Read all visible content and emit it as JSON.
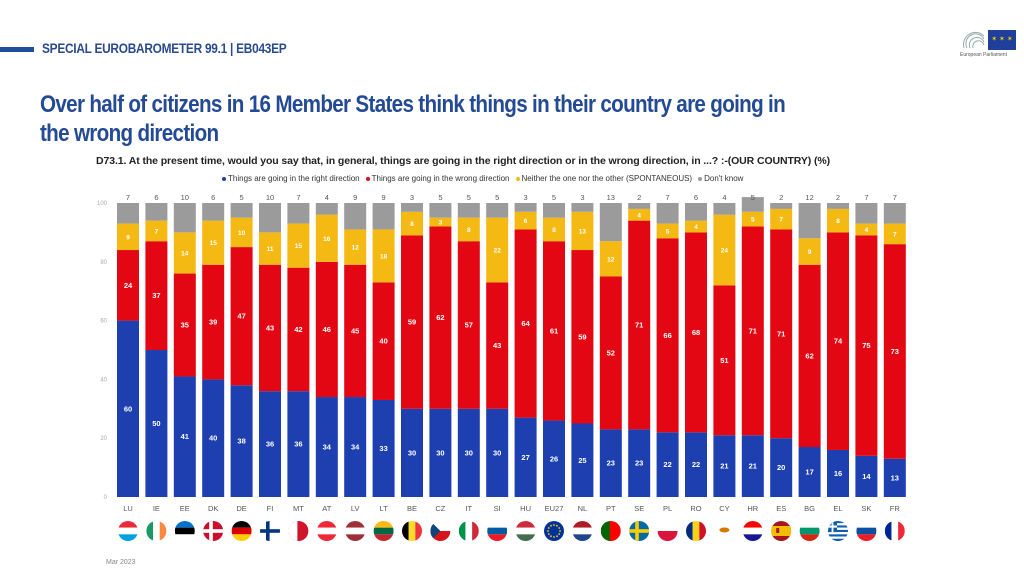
{
  "header": {
    "survey_label": "SPECIAL EUROBAROMETER 99.1 | EB043EP",
    "logo_text": "European Parliament",
    "title": "Over half of citizens in 16 Member States think things in their country are going in the wrong direction",
    "question": "D73.1. At the present time, would you say that, in general, things are going in the right direction or in the wrong direction, in ...? :-(OUR COUNTRY) (%)"
  },
  "footer": {
    "date": "Mar 2023"
  },
  "colors": {
    "right": "#1d3fb0",
    "wrong": "#e30613",
    "neither": "#f5b914",
    "dontknow": "#9b9b9b",
    "accent": "#244a95"
  },
  "chart_data": {
    "type": "bar",
    "stacked": true,
    "title": "D73.1. At the present time, would you say that, in general, things are going in the right direction or in the wrong direction, in ...? :-(OUR COUNTRY) (%)",
    "xlabel": "",
    "ylabel": "%",
    "ylim": [
      0,
      100
    ],
    "yticks": [
      0,
      20,
      40,
      60,
      80,
      100
    ],
    "legend_position": "top",
    "categories": [
      "LU",
      "IE",
      "EE",
      "DK",
      "DE",
      "FI",
      "MT",
      "AT",
      "LV",
      "LT",
      "BE",
      "CZ",
      "IT",
      "SI",
      "HU",
      "EU27",
      "NL",
      "PT",
      "SE",
      "PL",
      "RO",
      "CY",
      "HR",
      "ES",
      "BG",
      "EL",
      "SK",
      "FR"
    ],
    "series": [
      {
        "name": "Things are going in the right direction",
        "key": "right",
        "values": [
          60,
          50,
          41,
          40,
          38,
          36,
          36,
          34,
          34,
          33,
          30,
          30,
          30,
          30,
          27,
          26,
          25,
          23,
          23,
          22,
          22,
          21,
          21,
          20,
          17,
          16,
          14,
          13
        ]
      },
      {
        "name": "Things are going in the wrong direction",
        "key": "wrong",
        "values": [
          24,
          37,
          35,
          39,
          47,
          43,
          42,
          46,
          45,
          40,
          59,
          62,
          57,
          43,
          64,
          61,
          59,
          52,
          71,
          66,
          68,
          51,
          71,
          71,
          62,
          74,
          75,
          73
        ]
      },
      {
        "name": "Neither the one nor the other (SPONTANEOUS)",
        "key": "neither",
        "values": [
          9,
          7,
          14,
          15,
          10,
          11,
          15,
          16,
          12,
          18,
          8,
          3,
          8,
          22,
          6,
          8,
          13,
          12,
          4,
          5,
          4,
          24,
          5,
          7,
          9,
          8,
          4,
          7
        ]
      },
      {
        "name": "Don't know",
        "key": "dontknow",
        "values": [
          7,
          6,
          10,
          6,
          5,
          10,
          7,
          4,
          9,
          9,
          3,
          5,
          5,
          5,
          3,
          5,
          3,
          13,
          2,
          7,
          6,
          4,
          5,
          2,
          12,
          2,
          7,
          7
        ]
      }
    ]
  },
  "flags": {
    "LU": [
      "#ed2939",
      "#ffffff",
      "#00a1de",
      "h"
    ],
    "IE": [
      "#169b62",
      "#ffffff",
      "#ff883e",
      "v"
    ],
    "EE": [
      "#0072ce",
      "#000000",
      "#ffffff",
      "h"
    ],
    "DK": [
      "#c8102e",
      "#ffffff",
      "#c8102e",
      "nordic"
    ],
    "DE": [
      "#000000",
      "#dd0000",
      "#ffce00",
      "h"
    ],
    "FI": [
      "#ffffff",
      "#003580",
      "#ffffff",
      "nordic"
    ],
    "MT": [
      "#ffffff",
      "#cf142b",
      "#cf142b",
      "v2"
    ],
    "AT": [
      "#ed2939",
      "#ffffff",
      "#ed2939",
      "h"
    ],
    "LV": [
      "#9e3039",
      "#ffffff",
      "#9e3039",
      "h"
    ],
    "LT": [
      "#fdb913",
      "#006a44",
      "#c1272d",
      "h"
    ],
    "BE": [
      "#000000",
      "#fdda24",
      "#ef3340",
      "v"
    ],
    "CZ": [
      "#ffffff",
      "#d7141a",
      "#11457e",
      "cz"
    ],
    "IT": [
      "#009246",
      "#ffffff",
      "#ce2b37",
      "v"
    ],
    "SI": [
      "#ffffff",
      "#005da4",
      "#ed1c24",
      "h"
    ],
    "HU": [
      "#cd2a3e",
      "#ffffff",
      "#436f4d",
      "h"
    ],
    "EU27": [
      "#003399",
      "#003399",
      "#003399",
      "eu"
    ],
    "NL": [
      "#ae1c28",
      "#ffffff",
      "#21468b",
      "h"
    ],
    "PT": [
      "#006600",
      "#ff0000",
      "#ff0000",
      "v2"
    ],
    "SE": [
      "#006aa7",
      "#fecc00",
      "#006aa7",
      "nordic"
    ],
    "PL": [
      "#ffffff",
      "#ffffff",
      "#dc143c",
      "h2"
    ],
    "RO": [
      "#002b7f",
      "#fcd116",
      "#ce1126",
      "v"
    ],
    "CY": [
      "#ffffff",
      "#d57800",
      "#ffffff",
      "cy"
    ],
    "HR": [
      "#ff0000",
      "#ffffff",
      "#171796",
      "h"
    ],
    "ES": [
      "#aa151b",
      "#f1bf00",
      "#aa151b",
      "es"
    ],
    "BG": [
      "#ffffff",
      "#00966e",
      "#d62612",
      "h"
    ],
    "EL": [
      "#0d5eaf",
      "#ffffff",
      "#0d5eaf",
      "gr"
    ],
    "SK": [
      "#ffffff",
      "#0b4ea2",
      "#ee1c25",
      "h"
    ],
    "FR": [
      "#002395",
      "#ffffff",
      "#ed2939",
      "v"
    ]
  }
}
